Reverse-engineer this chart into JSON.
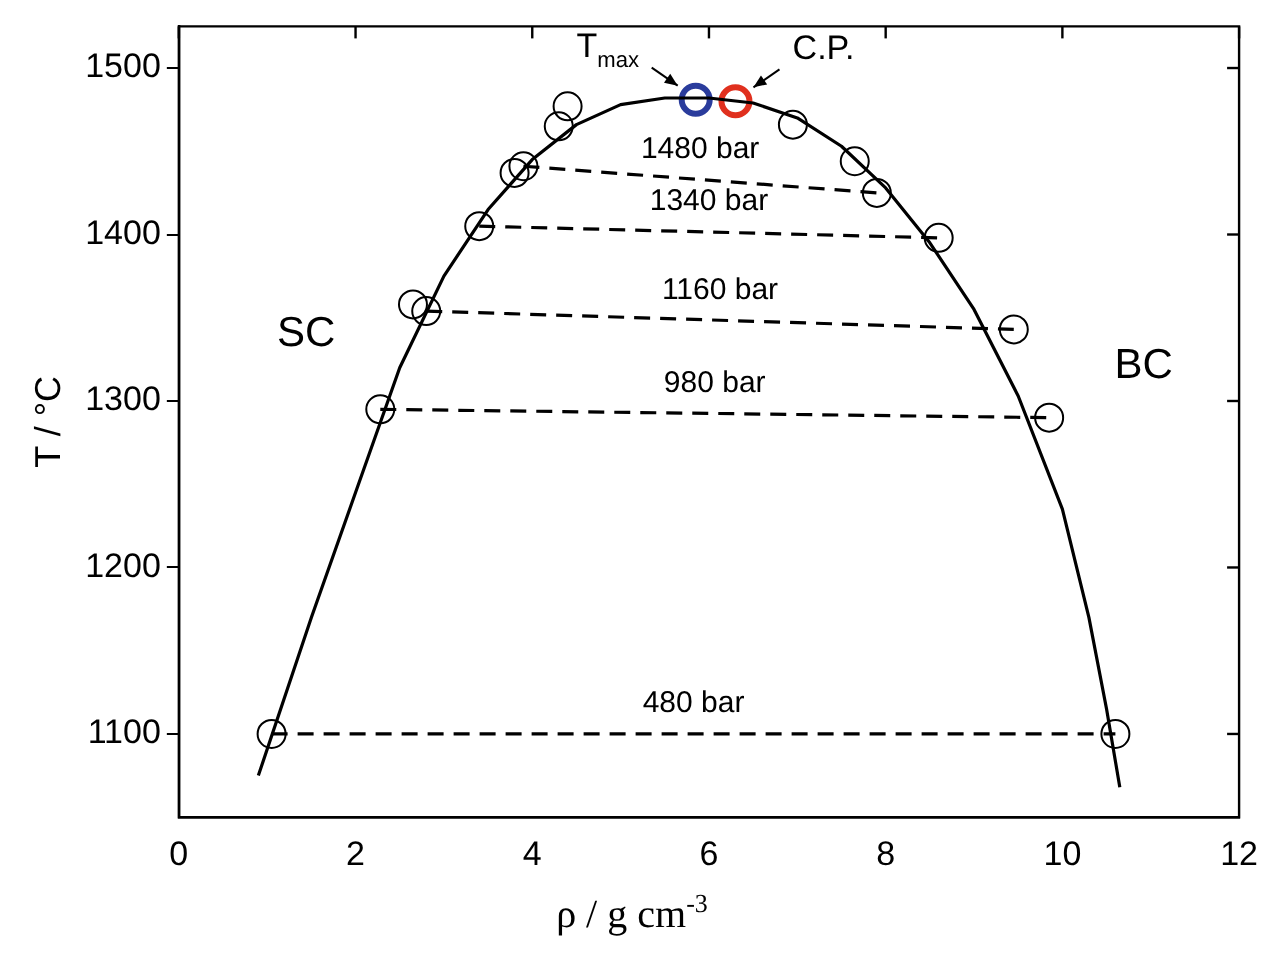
{
  "chart_data": {
    "type": "line",
    "xlabel": "ρ / g cm$^{-3}$",
    "ylabel": "T / °C",
    "xlim": [
      0,
      12
    ],
    "xticks": [
      0,
      2,
      4,
      6,
      8,
      10,
      12
    ],
    "ylim": [
      1050,
      1525
    ],
    "yticks": [
      1100,
      1200,
      1300,
      1400,
      1500
    ],
    "grid": false,
    "legend": false,
    "series": [
      {
        "color": "#000000",
        "marker": "none",
        "line_style": "solid",
        "x": [
          0.9,
          1.5,
          2,
          2.5,
          3,
          3.5,
          4,
          4.5,
          5,
          5.5,
          6,
          6.5,
          7,
          7.5,
          8,
          8.5,
          9,
          9.5,
          10,
          10.3,
          10.5,
          10.65
        ],
        "values": [
          1075,
          1170,
          1245,
          1320,
          1375,
          1415,
          1445,
          1466,
          1478,
          1482,
          1482,
          1479,
          1470,
          1453,
          1428,
          1395,
          1355,
          1303,
          1235,
          1170,
          1115,
          1068
        ]
      },
      {
        "color": "#000000",
        "marker": "none",
        "line_style": "dashed",
        "x": [
          1.05,
          10.6
        ],
        "values": [
          1100,
          1100
        ]
      },
      {
        "color": "#000000",
        "marker": "none",
        "line_style": "dashed",
        "x": [
          2.28,
          9.85
        ],
        "values": [
          1295,
          1290
        ]
      },
      {
        "color": "#000000",
        "marker": "none",
        "line_style": "dashed",
        "x": [
          2.8,
          9.45
        ],
        "values": [
          1354,
          1343
        ]
      },
      {
        "color": "#000000",
        "marker": "none",
        "line_style": "dashed",
        "x": [
          3.4,
          8.6
        ],
        "values": [
          1405,
          1398
        ]
      },
      {
        "color": "#000000",
        "marker": "none",
        "line_style": "dashed",
        "x": [
          3.9,
          7.9
        ],
        "values": [
          1441,
          1425
        ]
      },
      {
        "type": "scatter",
        "color": "#000000",
        "marker": "circle",
        "x": [
          1.05,
          2.28,
          2.65,
          2.8,
          3.4,
          3.8,
          3.9,
          4.3,
          4.4,
          6.95,
          7.65,
          7.9,
          8.6,
          9.45,
          9.85,
          10.6
        ],
        "values": [
          1100,
          1295,
          1358,
          1354,
          1405,
          1437,
          1441,
          1465,
          1477,
          1466,
          1444,
          1425,
          1398,
          1343,
          1290,
          1100
        ]
      },
      {
        "type": "scatter",
        "color": "#2a3c9c",
        "marker": "circle",
        "x": [
          5.85
        ],
        "values": [
          1481
        ]
      },
      {
        "type": "scatter",
        "color": "#e0301e",
        "marker": "circle",
        "x": [
          6.3
        ],
        "values": [
          1480
        ]
      }
    ],
    "annotations": [
      {
        "text": "T$_{max}$",
        "x": 5.85,
        "y": 1481
      },
      {
        "text": "C.P.",
        "x": 6.3,
        "y": 1480
      },
      {
        "text": "1480 bar",
        "x": 5.9,
        "y": 1433
      },
      {
        "text": "1340 bar",
        "x": 6.0,
        "y": 1401.5
      },
      {
        "text": "1160 bar",
        "x": 6.125,
        "y": 1348.5
      },
      {
        "text": "980 bar",
        "x": 6.065,
        "y": 1292.5
      },
      {
        "text": "480 bar",
        "x": 5.825,
        "y": 1100
      },
      "SC",
      "BC"
    ]
  }
}
